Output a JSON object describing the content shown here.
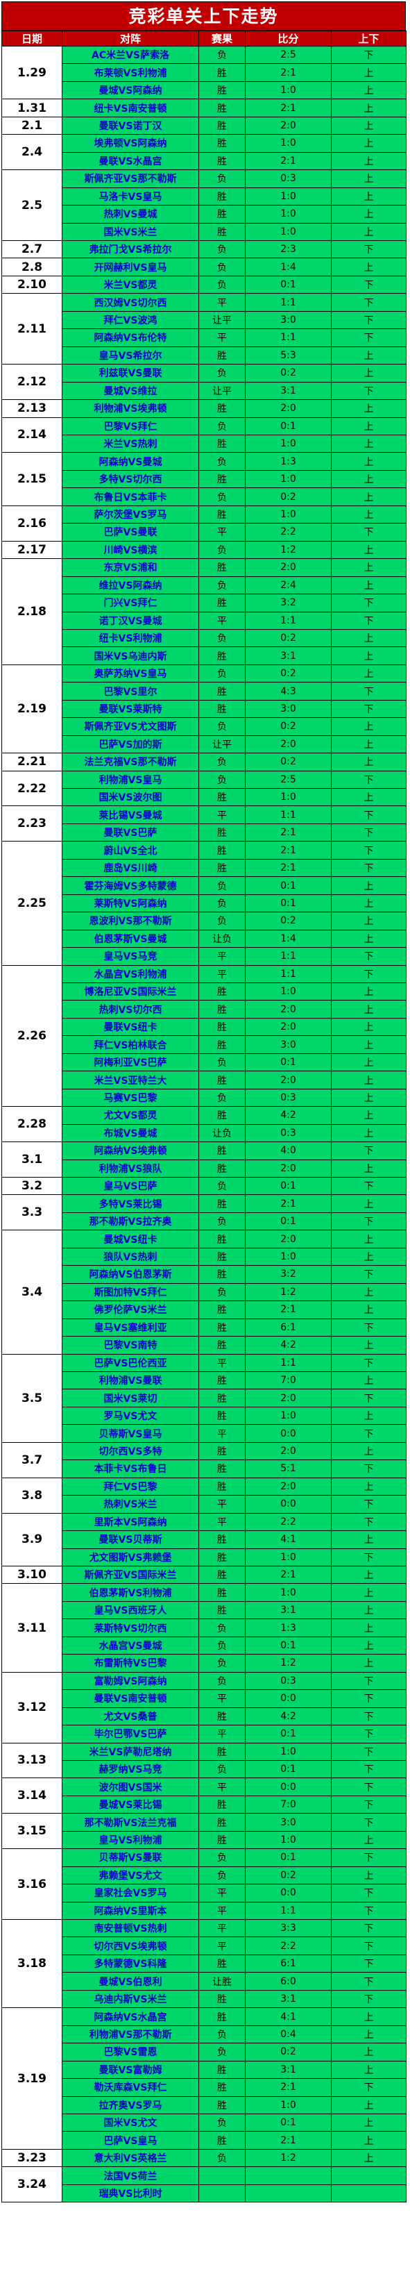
{
  "title": "竞彩单关上下走势",
  "headers": {
    "date": "日期",
    "match": "对阵",
    "result": "赛果",
    "score": "比分",
    "ud": "上下"
  },
  "colors": {
    "title_bg": "#c00000",
    "cell_bg": "#00d66a",
    "match_text": "#0000c8"
  },
  "groups": [
    {
      "date": "1.29",
      "rows": [
        {
          "match": "AC米兰VS萨索洛",
          "result": "负",
          "score": "2:5",
          "ud": "下"
        },
        {
          "match": "布莱顿VS利物浦",
          "result": "胜",
          "score": "2:1",
          "ud": "上"
        },
        {
          "match": "曼城VS阿森纳",
          "result": "胜",
          "score": "1:0",
          "ud": "上"
        }
      ]
    },
    {
      "date": "1.31",
      "rows": [
        {
          "match": "纽卡VS南安普顿",
          "result": "胜",
          "score": "2:1",
          "ud": "上"
        }
      ]
    },
    {
      "date": "2.1",
      "rows": [
        {
          "match": "曼联VS诺丁汉",
          "result": "胜",
          "score": "2:0",
          "ud": "上"
        }
      ]
    },
    {
      "date": "2.4",
      "rows": [
        {
          "match": "埃弗顿VS阿森纳",
          "result": "胜",
          "score": "1:0",
          "ud": "上"
        },
        {
          "match": "曼联VS水晶宫",
          "result": "胜",
          "score": "2:1",
          "ud": "上"
        }
      ]
    },
    {
      "date": "2.5",
      "rows": [
        {
          "match": "斯佩齐亚VS那不勒斯",
          "result": "负",
          "score": "0:3",
          "ud": "上"
        },
        {
          "match": "马洛卡VS皇马",
          "result": "胜",
          "score": "1:0",
          "ud": "上"
        },
        {
          "match": "热刺VS曼城",
          "result": "胜",
          "score": "1:0",
          "ud": "上"
        },
        {
          "match": "国米VS米兰",
          "result": "胜",
          "score": "1:0",
          "ud": "上"
        }
      ]
    },
    {
      "date": "2.7",
      "rows": [
        {
          "match": "弗拉门戈VS希拉尔",
          "result": "负",
          "score": "2:3",
          "ud": "下"
        }
      ]
    },
    {
      "date": "2.8",
      "rows": [
        {
          "match": "开网赫利VS皇马",
          "result": "负",
          "score": "1:4",
          "ud": "上"
        }
      ]
    },
    {
      "date": "2.10",
      "rows": [
        {
          "match": "米兰VS都灵",
          "result": "负",
          "score": "0:1",
          "ud": "下"
        }
      ]
    },
    {
      "date": "2.11",
      "rows": [
        {
          "match": "西汉姆VS切尔西",
          "result": "平",
          "score": "1:1",
          "ud": "下"
        },
        {
          "match": "拜仁VS波鸿",
          "result": "让平",
          "score": "3:0",
          "ud": "下"
        },
        {
          "match": "阿森纳VS布伦特",
          "result": "平",
          "score": "1:1",
          "ud": "下"
        },
        {
          "match": "皇马VS希拉尔",
          "result": "胜",
          "score": "5:3",
          "ud": "上"
        }
      ]
    },
    {
      "date": "2.12",
      "rows": [
        {
          "match": "利兹联VS曼联",
          "result": "负",
          "score": "0:2",
          "ud": "上"
        },
        {
          "match": "曼城VS维拉",
          "result": "让平",
          "score": "3:1",
          "ud": "下"
        }
      ]
    },
    {
      "date": "2.13",
      "rows": [
        {
          "match": "利物浦VS埃弗顿",
          "result": "胜",
          "score": "2:0",
          "ud": "上"
        }
      ]
    },
    {
      "date": "2.14",
      "rows": [
        {
          "match": "巴黎VS拜仁",
          "result": "负",
          "score": "0:1",
          "ud": "上"
        },
        {
          "match": "米兰VS热刺",
          "result": "胜",
          "score": "1:0",
          "ud": "上"
        }
      ]
    },
    {
      "date": "2.15",
      "rows": [
        {
          "match": "阿森纳VS曼城",
          "result": "负",
          "score": "1:3",
          "ud": "上"
        },
        {
          "match": "多特VS切尔西",
          "result": "胜",
          "score": "1:0",
          "ud": "上"
        },
        {
          "match": "布鲁日VS本菲卡",
          "result": "负",
          "score": "0:2",
          "ud": "上"
        }
      ]
    },
    {
      "date": "2.16",
      "rows": [
        {
          "match": "萨尔茨堡VS罗马",
          "result": "胜",
          "score": "1:0",
          "ud": "上"
        },
        {
          "match": "巴萨VS曼联",
          "result": "平",
          "score": "2:2",
          "ud": "下"
        }
      ]
    },
    {
      "date": "2.17",
      "rows": [
        {
          "match": "川崎VS横滨",
          "result": "负",
          "score": "1:2",
          "ud": "上"
        }
      ]
    },
    {
      "date": "2.18",
      "rows": [
        {
          "match": "东京VS浦和",
          "result": "胜",
          "score": "2:0",
          "ud": "上"
        },
        {
          "match": "维拉VS阿森纳",
          "result": "负",
          "score": "2:4",
          "ud": "上"
        },
        {
          "match": "门兴VS拜仁",
          "result": "胜",
          "score": "3:2",
          "ud": "下"
        },
        {
          "match": "诺丁汉VS曼城",
          "result": "平",
          "score": "1:1",
          "ud": "下"
        },
        {
          "match": "纽卡VS利物浦",
          "result": "负",
          "score": "0:2",
          "ud": "上"
        },
        {
          "match": "国米VS乌迪内斯",
          "result": "胜",
          "score": "3:1",
          "ud": "上"
        }
      ]
    },
    {
      "date": "2.19",
      "rows": [
        {
          "match": "奥萨苏纳VS皇马",
          "result": "负",
          "score": "0:2",
          "ud": "上"
        },
        {
          "match": "巴黎VS里尔",
          "result": "胜",
          "score": "4:3",
          "ud": "下"
        },
        {
          "match": "曼联VS莱斯特",
          "result": "胜",
          "score": "3:0",
          "ud": "下"
        },
        {
          "match": "斯佩齐亚VS尤文图斯",
          "result": "负",
          "score": "0:2",
          "ud": "上"
        },
        {
          "match": "巴萨VS加的斯",
          "result": "让平",
          "score": "2:0",
          "ud": "上"
        }
      ]
    },
    {
      "date": "2.21",
      "rows": [
        {
          "match": "法兰克福VS那不勒斯",
          "result": "负",
          "score": "0:2",
          "ud": "上"
        }
      ]
    },
    {
      "date": "2.22",
      "rows": [
        {
          "match": "利物浦VS皇马",
          "result": "负",
          "score": "2:5",
          "ud": "下"
        },
        {
          "match": "国米VS波尔图",
          "result": "胜",
          "score": "1:0",
          "ud": "上"
        }
      ]
    },
    {
      "date": "2.23",
      "rows": [
        {
          "match": "莱比锡VS曼城",
          "result": "平",
          "score": "1:1",
          "ud": "下"
        },
        {
          "match": "曼联VS巴萨",
          "result": "胜",
          "score": "2:1",
          "ud": "下"
        }
      ]
    },
    {
      "date": "2.25",
      "rows": [
        {
          "match": "蔚山VS全北",
          "result": "胜",
          "score": "2:1",
          "ud": "下"
        },
        {
          "match": "鹿岛VS川崎",
          "result": "胜",
          "score": "2:1",
          "ud": "下"
        },
        {
          "match": "霍芬海姆VS多特蒙德",
          "result": "负",
          "score": "0:1",
          "ud": "上"
        },
        {
          "match": "莱斯特VS阿森纳",
          "result": "负",
          "score": "0:1",
          "ud": "上"
        },
        {
          "match": "恩波利VS那不勒斯",
          "result": "负",
          "score": "0:2",
          "ud": "上"
        },
        {
          "match": "伯恩茅斯VS曼城",
          "result": "让负",
          "score": "1:4",
          "ud": "上"
        },
        {
          "match": "皇马VS马竞",
          "result": "平",
          "score": "1:1",
          "ud": "下"
        }
      ]
    },
    {
      "date": "2.26",
      "rows": [
        {
          "match": "水晶宫VS利物浦",
          "result": "平",
          "score": "1:1",
          "ud": "下"
        },
        {
          "match": "博洛尼亚VS国际米兰",
          "result": "胜",
          "score": "1:0",
          "ud": "上"
        },
        {
          "match": "热刺VS切尔西",
          "result": "胜",
          "score": "2:0",
          "ud": "上"
        },
        {
          "match": "曼联VS纽卡",
          "result": "胜",
          "score": "2:0",
          "ud": "上"
        },
        {
          "match": "拜仁VS柏林联合",
          "result": "胜",
          "score": "3:0",
          "ud": "上"
        },
        {
          "match": "阿梅利亚VS巴萨",
          "result": "负",
          "score": "0:1",
          "ud": "上"
        },
        {
          "match": "米兰VS亚特兰大",
          "result": "胜",
          "score": "2:0",
          "ud": "上"
        },
        {
          "match": "马赛VS巴黎",
          "result": "负",
          "score": "0:3",
          "ud": "上"
        }
      ]
    },
    {
      "date": "2.28",
      "rows": [
        {
          "match": "尤文VS都灵",
          "result": "胜",
          "score": "4:2",
          "ud": "上"
        },
        {
          "match": "布城VS曼城",
          "result": "让负",
          "score": "0:3",
          "ud": "上"
        }
      ]
    },
    {
      "date": "3.1",
      "rows": [
        {
          "match": "阿森纳VS埃弗顿",
          "result": "胜",
          "score": "4:0",
          "ud": "下"
        },
        {
          "match": "利物浦VS狼队",
          "result": "胜",
          "score": "2:0",
          "ud": "上"
        }
      ]
    },
    {
      "date": "3.2",
      "rows": [
        {
          "match": "皇马VS巴萨",
          "result": "负",
          "score": "0:1",
          "ud": "下"
        }
      ]
    },
    {
      "date": "3.3",
      "rows": [
        {
          "match": "多特VS莱比锡",
          "result": "胜",
          "score": "2:1",
          "ud": "上"
        },
        {
          "match": "那不勒斯VS拉齐奥",
          "result": "负",
          "score": "0:1",
          "ud": "下"
        }
      ]
    },
    {
      "date": "3.4",
      "rows": [
        {
          "match": "曼城VS纽卡",
          "result": "胜",
          "score": "2:0",
          "ud": "上"
        },
        {
          "match": "狼队VS热刺",
          "result": "胜",
          "score": "1:0",
          "ud": "上"
        },
        {
          "match": "阿森纳VS伯恩茅斯",
          "result": "胜",
          "score": "3:2",
          "ud": "下"
        },
        {
          "match": "斯图加特VS拜仁",
          "result": "负",
          "score": "1:2",
          "ud": "上"
        },
        {
          "match": "佛罗伦萨VS米兰",
          "result": "胜",
          "score": "2:1",
          "ud": "上"
        },
        {
          "match": "皇马VS塞维利亚",
          "result": "胜",
          "score": "6:1",
          "ud": "下"
        },
        {
          "match": "巴黎VS南特",
          "result": "胜",
          "score": "4:2",
          "ud": "上"
        }
      ]
    },
    {
      "date": "3.5",
      "rows": [
        {
          "match": "巴萨VS巴伦西亚",
          "result": "平",
          "score": "1:1",
          "ud": "下"
        },
        {
          "match": "利物浦VS曼联",
          "result": "胜",
          "score": "7:0",
          "ud": "上"
        },
        {
          "match": "国米VS莱切",
          "result": "胜",
          "score": "2:0",
          "ud": "下"
        },
        {
          "match": "罗马VS尤文",
          "result": "胜",
          "score": "1:0",
          "ud": "上"
        },
        {
          "match": "贝蒂斯VS皇马",
          "result": "平",
          "score": "0:0",
          "ud": "下"
        }
      ]
    },
    {
      "date": "3.7",
      "rows": [
        {
          "match": "切尔西VS多特",
          "result": "胜",
          "score": "2:0",
          "ud": "上"
        },
        {
          "match": "本菲卡VS布鲁日",
          "result": "胜",
          "score": "5:1",
          "ud": "下"
        }
      ]
    },
    {
      "date": "3.8",
      "rows": [
        {
          "match": "拜仁VS巴黎",
          "result": "胜",
          "score": "2:0",
          "ud": "上"
        },
        {
          "match": "热刺VS米兰",
          "result": "平",
          "score": "0:0",
          "ud": "下"
        }
      ]
    },
    {
      "date": "3.9",
      "rows": [
        {
          "match": "里斯本VS阿森纳",
          "result": "平",
          "score": "2:2",
          "ud": "下"
        },
        {
          "match": "曼联VS贝蒂斯",
          "result": "胜",
          "score": "4:1",
          "ud": "上"
        },
        {
          "match": "尤文图斯VS弗赖堡",
          "result": "胜",
          "score": "1:0",
          "ud": "下"
        }
      ]
    },
    {
      "date": "3.10",
      "rows": [
        {
          "match": "斯佩齐亚VS国际米兰",
          "result": "胜",
          "score": "2:1",
          "ud": "上"
        }
      ]
    },
    {
      "date": "3.11",
      "rows": [
        {
          "match": "伯恩茅斯VS利物浦",
          "result": "胜",
          "score": "1:0",
          "ud": "上"
        },
        {
          "match": "皇马VS西班牙人",
          "result": "胜",
          "score": "3:1",
          "ud": "上"
        },
        {
          "match": "莱斯特VS切尔西",
          "result": "负",
          "score": "1:3",
          "ud": "上"
        },
        {
          "match": "水晶宫VS曼城",
          "result": "负",
          "score": "0:1",
          "ud": "上"
        },
        {
          "match": "布雷斯特VS巴黎",
          "result": "负",
          "score": "1:2",
          "ud": "上"
        }
      ]
    },
    {
      "date": "3.12",
      "rows": [
        {
          "match": "富勒姆VS阿森纳",
          "result": "负",
          "score": "0:3",
          "ud": "下"
        },
        {
          "match": "曼联VS南安普顿",
          "result": "平",
          "score": "0:0",
          "ud": "下"
        },
        {
          "match": "尤文VS桑普",
          "result": "胜",
          "score": "4:2",
          "ud": "下"
        },
        {
          "match": "毕尔巴鄂VS巴萨",
          "result": "平",
          "score": "0:1",
          "ud": "下"
        }
      ]
    },
    {
      "date": "3.13",
      "rows": [
        {
          "match": "米兰VS萨勒尼塔纳",
          "result": "胜",
          "score": "1:0",
          "ud": "下"
        },
        {
          "match": "赫罗纳VS马竞",
          "result": "负",
          "score": "0:1",
          "ud": "下"
        }
      ]
    },
    {
      "date": "3.14",
      "rows": [
        {
          "match": "波尔图VS国米",
          "result": "平",
          "score": "0:0",
          "ud": "下"
        },
        {
          "match": "曼城VS莱比锡",
          "result": "胜",
          "score": "7:0",
          "ud": "下"
        }
      ]
    },
    {
      "date": "3.15",
      "rows": [
        {
          "match": "那不勒斯VS法兰克福",
          "result": "胜",
          "score": "3:0",
          "ud": "下"
        },
        {
          "match": "皇马VS利物浦",
          "result": "胜",
          "score": "1:0",
          "ud": "上"
        }
      ]
    },
    {
      "date": "3.16",
      "rows": [
        {
          "match": "贝蒂斯VS曼联",
          "result": "负",
          "score": "0:1",
          "ud": "下"
        },
        {
          "match": "弗赖堡VS尤文",
          "result": "负",
          "score": "0:2",
          "ud": "上"
        },
        {
          "match": "皇家社会VS罗马",
          "result": "平",
          "score": "0:0",
          "ud": "下"
        },
        {
          "match": "阿森纳VS里斯本",
          "result": "平",
          "score": "1:1",
          "ud": "下"
        }
      ]
    },
    {
      "date": "3.18",
      "rows": [
        {
          "match": "南安普顿VS热刺",
          "result": "平",
          "score": "3:3",
          "ud": "下"
        },
        {
          "match": "切尔西VS埃弗顿",
          "result": "平",
          "score": "2:2",
          "ud": "下"
        },
        {
          "match": "多特蒙德VS科隆",
          "result": "胜",
          "score": "6:1",
          "ud": "下"
        },
        {
          "match": "曼城VS伯恩利",
          "result": "让胜",
          "score": "6:0",
          "ud": "下"
        },
        {
          "match": "乌迪内斯VS米兰",
          "result": "胜",
          "score": "3:1",
          "ud": "下"
        }
      ]
    },
    {
      "date": "3.19",
      "rows": [
        {
          "match": "阿森纳VS水晶宫",
          "result": "胜",
          "score": "4:1",
          "ud": "上"
        },
        {
          "match": "利物浦VS那不勒斯",
          "result": "负",
          "score": "0:4",
          "ud": "上"
        },
        {
          "match": "巴黎VS雷恩",
          "result": "负",
          "score": "0:2",
          "ud": "上"
        },
        {
          "match": "曼联VS富勒姆",
          "result": "胜",
          "score": "3:1",
          "ud": "上"
        },
        {
          "match": "勒沃库森VS拜仁",
          "result": "胜",
          "score": "2:1",
          "ud": "下"
        },
        {
          "match": "拉齐奥VS罗马",
          "result": "胜",
          "score": "1:0",
          "ud": "上"
        },
        {
          "match": "国米VS尤文",
          "result": "负",
          "score": "0:1",
          "ud": "上"
        },
        {
          "match": "巴萨VS皇马",
          "result": "胜",
          "score": "2:1",
          "ud": "上"
        }
      ]
    },
    {
      "date": "3.23",
      "rows": [
        {
          "match": "意大利VS英格兰",
          "result": "负",
          "score": "1:2",
          "ud": "上"
        }
      ]
    },
    {
      "date": "3.24",
      "rows": [
        {
          "match": "法国VS荷兰",
          "result": "",
          "score": "",
          "ud": ""
        },
        {
          "match": "瑞典VS比利时",
          "result": "",
          "score": "",
          "ud": ""
        }
      ]
    }
  ]
}
